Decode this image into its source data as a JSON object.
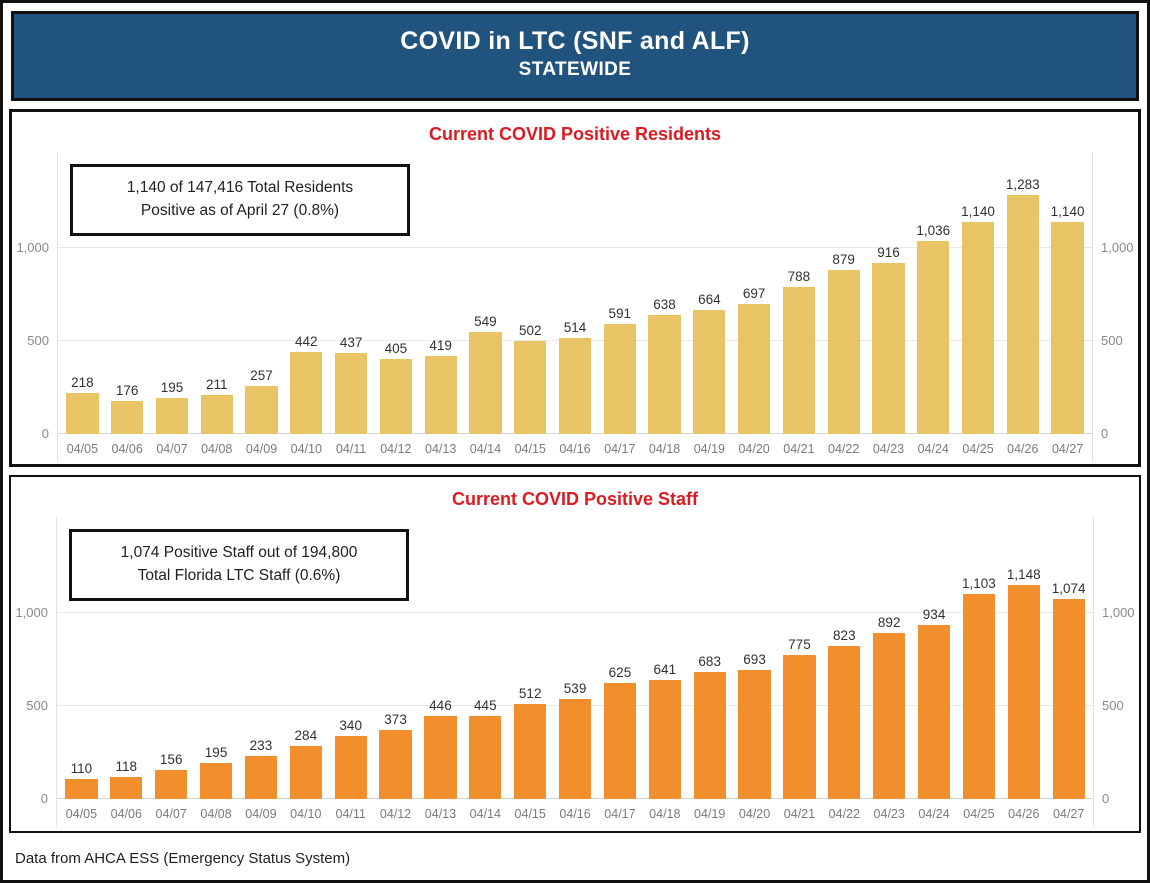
{
  "page": {
    "header": {
      "title": "COVID in LTC (SNF and ALF)",
      "subtitle": "STATEWIDE",
      "bg_color": "#21537F",
      "text_color": "#FFFFFF"
    },
    "footer": {
      "text": "Data from AHCA ESS (Emergency Status System)"
    },
    "title_accent_color": "#DE1A21"
  },
  "panels": [
    {
      "title": "Current COVID Positive Residents",
      "annotation": {
        "line1": "1,140 of 147,416 Total Residents",
        "line2": "Positive as of April 27 (0.8%)"
      }
    },
    {
      "title": "Current COVID Positive Staff",
      "annotation": {
        "line1": "1,074 Positive Staff out of 194,800",
        "line2": "Total Florida LTC Staff (0.6%)"
      }
    }
  ],
  "chart_data": [
    {
      "type": "bar",
      "title": "Current COVID Positive Residents",
      "categories": [
        "04/05",
        "04/06",
        "04/07",
        "04/08",
        "04/09",
        "04/10",
        "04/11",
        "04/12",
        "04/13",
        "04/14",
        "04/15",
        "04/16",
        "04/17",
        "04/18",
        "04/19",
        "04/20",
        "04/21",
        "04/22",
        "04/23",
        "04/24",
        "04/25",
        "04/26",
        "04/27"
      ],
      "values": [
        218,
        176,
        195,
        211,
        257,
        442,
        437,
        405,
        419,
        549,
        502,
        514,
        591,
        638,
        664,
        697,
        788,
        879,
        916,
        1036,
        1140,
        1283,
        1140
      ],
      "bar_color": "#E9C464",
      "value_label_color": "#323232",
      "xlabel": "",
      "ylabel": "",
      "ylim": [
        0,
        1450
      ],
      "yticks": [
        0,
        500,
        1000
      ],
      "grid": true,
      "value_labels": true,
      "legend": "none"
    },
    {
      "type": "bar",
      "title": "Current COVID Positive Staff",
      "categories": [
        "04/05",
        "04/06",
        "04/07",
        "04/08",
        "04/09",
        "04/10",
        "04/11",
        "04/12",
        "04/13",
        "04/14",
        "04/15",
        "04/16",
        "04/17",
        "04/18",
        "04/19",
        "04/20",
        "04/21",
        "04/22",
        "04/23",
        "04/24",
        "04/25",
        "04/26",
        "04/27"
      ],
      "values": [
        110,
        118,
        156,
        195,
        233,
        284,
        340,
        373,
        446,
        445,
        512,
        539,
        625,
        641,
        683,
        693,
        775,
        823,
        892,
        934,
        1103,
        1148,
        1074
      ],
      "bar_color": "#F28E2B",
      "value_label_color": "#323232",
      "xlabel": "",
      "ylabel": "",
      "ylim": [
        0,
        1450
      ],
      "yticks": [
        0,
        500,
        1000
      ],
      "grid": true,
      "value_labels": true,
      "legend": "none"
    }
  ]
}
